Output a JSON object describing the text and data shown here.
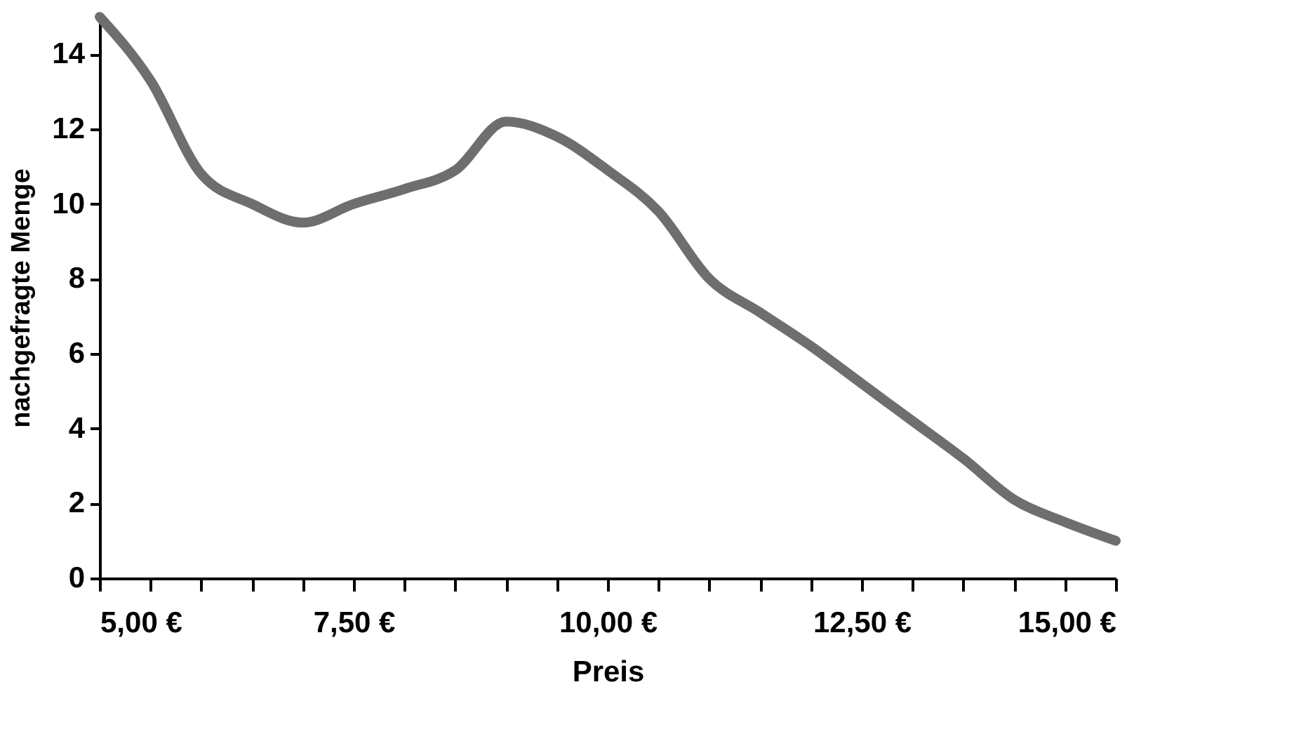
{
  "chart_data": {
    "type": "line",
    "xlabel": "Preis",
    "ylabel": "nachgefragte Menge",
    "x": [
      5,
      5.5,
      6,
      6.5,
      7,
      7.5,
      8,
      8.5,
      9,
      9.5,
      10,
      10.5,
      11,
      11.5,
      12,
      12.5,
      13,
      13.5,
      14,
      14.5,
      15
    ],
    "series": [
      {
        "color": "#6e6e6e",
        "values": [
          15,
          13.3,
          10.8,
          10.0,
          9.5,
          10.0,
          10.4,
          10.9,
          12.2,
          11.8,
          10.9,
          9.8,
          8.0,
          7.1,
          6.2,
          5.2,
          4.2,
          3.2,
          2.1,
          1.5,
          1.0
        ]
      }
    ],
    "xlim": [
      5,
      15
    ],
    "xticks": [
      {
        "value": 5,
        "label": "5,00 €"
      },
      {
        "value": 5.5,
        "label": null
      },
      {
        "value": 6,
        "label": null
      },
      {
        "value": 6.5,
        "label": null
      },
      {
        "value": 7,
        "label": null
      },
      {
        "value": 7.5,
        "label": "7,50 €"
      },
      {
        "value": 8,
        "label": null
      },
      {
        "value": 8.5,
        "label": null
      },
      {
        "value": 9,
        "label": null
      },
      {
        "value": 9.5,
        "label": null
      },
      {
        "value": 10,
        "label": "10,00 €"
      },
      {
        "value": 10.5,
        "label": null
      },
      {
        "value": 11,
        "label": null
      },
      {
        "value": 11.5,
        "label": null
      },
      {
        "value": 12,
        "label": null
      },
      {
        "value": 12.5,
        "label": "12,50 €"
      },
      {
        "value": 13,
        "label": null
      },
      {
        "value": 13.5,
        "label": null
      },
      {
        "value": 14,
        "label": null
      },
      {
        "value": 14.5,
        "label": null
      },
      {
        "value": 15,
        "label": "15,00 €"
      }
    ],
    "ylim": [
      0,
      15
    ],
    "yticks": [
      0,
      2,
      4,
      6,
      8,
      10,
      12,
      14
    ],
    "grid": false,
    "marker": "none",
    "line_style": "solid"
  }
}
